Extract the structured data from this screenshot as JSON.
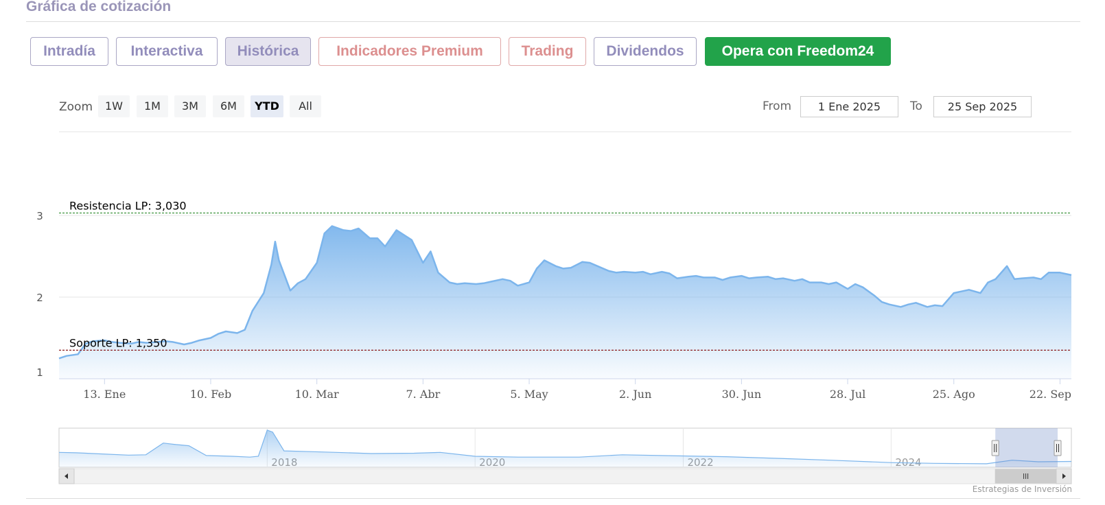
{
  "page_title": "Gráfica de cotización",
  "tabs": [
    {
      "label": "Intradía",
      "state": "normal"
    },
    {
      "label": "Interactiva",
      "state": "normal"
    },
    {
      "label": "Histórica",
      "state": "active"
    },
    {
      "label": "Indicadores Premium",
      "state": "premium"
    },
    {
      "label": "Trading",
      "state": "premium"
    },
    {
      "label": "Dividendos",
      "state": "normal"
    },
    {
      "label": "Opera con Freedom24",
      "state": "cta"
    }
  ],
  "zoom": {
    "label": "Zoom",
    "buttons": [
      "1W",
      "1M",
      "3M",
      "6M",
      "YTD",
      "All"
    ],
    "selected": "YTD"
  },
  "range": {
    "from_label": "From",
    "from_value": "1 Ene 2025",
    "to_label": "To",
    "to_value": "25 Sep 2025"
  },
  "credits": "Estrategias de Inversión",
  "colors": {
    "series_line": "#7cb5ec",
    "resistance": "#2e8b2e",
    "support": "#8b1a1a",
    "cta": "#22a34a"
  },
  "chart_data": {
    "type": "area",
    "title": "",
    "xlabel": "",
    "ylabel": "",
    "ylim": [
      1,
      3.2
    ],
    "y_ticks": [
      "1",
      "2",
      "3"
    ],
    "x_tick_labels": [
      "13. Ene",
      "10. Feb",
      "10. Mar",
      "7. Abr",
      "5. May",
      "2. Jun",
      "30. Jun",
      "28. Jul",
      "25. Ago",
      "22. Sep"
    ],
    "grid": "horizontal",
    "x_range": [
      "2025-01-01",
      "2025-09-25"
    ],
    "series": [
      {
        "values": [
          [
            "2025-01-01",
            1.25
          ],
          [
            "2025-01-03",
            1.28
          ],
          [
            "2025-01-06",
            1.3
          ],
          [
            "2025-01-08",
            1.43
          ],
          [
            "2025-01-10",
            1.46
          ],
          [
            "2025-01-13",
            1.47
          ],
          [
            "2025-01-15",
            1.45
          ],
          [
            "2025-01-17",
            1.44
          ],
          [
            "2025-01-20",
            1.43
          ],
          [
            "2025-01-22",
            1.45
          ],
          [
            "2025-01-24",
            1.44
          ],
          [
            "2025-01-27",
            1.45
          ],
          [
            "2025-01-29",
            1.46
          ],
          [
            "2025-01-31",
            1.45
          ],
          [
            "2025-02-03",
            1.42
          ],
          [
            "2025-02-05",
            1.44
          ],
          [
            "2025-02-07",
            1.47
          ],
          [
            "2025-02-10",
            1.5
          ],
          [
            "2025-02-12",
            1.55
          ],
          [
            "2025-02-14",
            1.58
          ],
          [
            "2025-02-17",
            1.56
          ],
          [
            "2025-02-19",
            1.6
          ],
          [
            "2025-02-21",
            1.83
          ],
          [
            "2025-02-24",
            2.05
          ],
          [
            "2025-02-26",
            2.4
          ],
          [
            "2025-02-27",
            2.68
          ],
          [
            "2025-02-28",
            2.45
          ],
          [
            "2025-03-03",
            2.08
          ],
          [
            "2025-03-05",
            2.17
          ],
          [
            "2025-03-07",
            2.22
          ],
          [
            "2025-03-10",
            2.42
          ],
          [
            "2025-03-12",
            2.78
          ],
          [
            "2025-03-14",
            2.87
          ],
          [
            "2025-03-17",
            2.82
          ],
          [
            "2025-03-19",
            2.81
          ],
          [
            "2025-03-21",
            2.84
          ],
          [
            "2025-03-24",
            2.72
          ],
          [
            "2025-03-26",
            2.72
          ],
          [
            "2025-03-28",
            2.62
          ],
          [
            "2025-03-31",
            2.82
          ],
          [
            "2025-04-02",
            2.76
          ],
          [
            "2025-04-04",
            2.7
          ],
          [
            "2025-04-07",
            2.42
          ],
          [
            "2025-04-09",
            2.56
          ],
          [
            "2025-04-11",
            2.3
          ],
          [
            "2025-04-14",
            2.18
          ],
          [
            "2025-04-16",
            2.16
          ],
          [
            "2025-04-18",
            2.17
          ],
          [
            "2025-04-21",
            2.16
          ],
          [
            "2025-04-23",
            2.17
          ],
          [
            "2025-04-25",
            2.19
          ],
          [
            "2025-04-28",
            2.22
          ],
          [
            "2025-04-30",
            2.2
          ],
          [
            "2025-05-02",
            2.14
          ],
          [
            "2025-05-05",
            2.18
          ],
          [
            "2025-05-07",
            2.35
          ],
          [
            "2025-05-09",
            2.45
          ],
          [
            "2025-05-12",
            2.38
          ],
          [
            "2025-05-14",
            2.35
          ],
          [
            "2025-05-16",
            2.36
          ],
          [
            "2025-05-19",
            2.43
          ],
          [
            "2025-05-21",
            2.42
          ],
          [
            "2025-05-23",
            2.38
          ],
          [
            "2025-05-26",
            2.32
          ],
          [
            "2025-05-28",
            2.3
          ],
          [
            "2025-05-30",
            2.31
          ],
          [
            "2025-06-02",
            2.3
          ],
          [
            "2025-06-04",
            2.31
          ],
          [
            "2025-06-06",
            2.28
          ],
          [
            "2025-06-09",
            2.31
          ],
          [
            "2025-06-11",
            2.29
          ],
          [
            "2025-06-13",
            2.23
          ],
          [
            "2025-06-16",
            2.25
          ],
          [
            "2025-06-18",
            2.26
          ],
          [
            "2025-06-20",
            2.24
          ],
          [
            "2025-06-23",
            2.24
          ],
          [
            "2025-06-25",
            2.21
          ],
          [
            "2025-06-27",
            2.24
          ],
          [
            "2025-06-30",
            2.26
          ],
          [
            "2025-07-02",
            2.23
          ],
          [
            "2025-07-04",
            2.24
          ],
          [
            "2025-07-07",
            2.25
          ],
          [
            "2025-07-09",
            2.22
          ],
          [
            "2025-07-11",
            2.23
          ],
          [
            "2025-07-14",
            2.2
          ],
          [
            "2025-07-16",
            2.22
          ],
          [
            "2025-07-18",
            2.18
          ],
          [
            "2025-07-21",
            2.18
          ],
          [
            "2025-07-23",
            2.16
          ],
          [
            "2025-07-25",
            2.18
          ],
          [
            "2025-07-28",
            2.1
          ],
          [
            "2025-07-30",
            2.16
          ],
          [
            "2025-08-01",
            2.12
          ],
          [
            "2025-08-04",
            2.02
          ],
          [
            "2025-08-06",
            1.94
          ],
          [
            "2025-08-08",
            1.91
          ],
          [
            "2025-08-11",
            1.88
          ],
          [
            "2025-08-13",
            1.91
          ],
          [
            "2025-08-15",
            1.93
          ],
          [
            "2025-08-18",
            1.88
          ],
          [
            "2025-08-20",
            1.9
          ],
          [
            "2025-08-22",
            1.89
          ],
          [
            "2025-08-25",
            2.05
          ],
          [
            "2025-08-27",
            2.07
          ],
          [
            "2025-08-29",
            2.09
          ],
          [
            "2025-09-01",
            2.05
          ],
          [
            "2025-09-03",
            2.18
          ],
          [
            "2025-09-05",
            2.22
          ],
          [
            "2025-09-08",
            2.38
          ],
          [
            "2025-09-10",
            2.22
          ],
          [
            "2025-09-12",
            2.23
          ],
          [
            "2025-09-15",
            2.24
          ],
          [
            "2025-09-17",
            2.22
          ],
          [
            "2025-09-19",
            2.3
          ],
          [
            "2025-09-22",
            2.3
          ],
          [
            "2025-09-25",
            2.27
          ]
        ]
      }
    ],
    "annotations": [
      {
        "label": "Resistencia LP: 3,030",
        "y": 3.03,
        "style": "dashed",
        "color": "#2e8b2e"
      },
      {
        "label": "Soporte LP: 1,350",
        "y": 1.35,
        "style": "dashed",
        "color": "#8b1a1a"
      }
    ],
    "navigator": {
      "tick_labels": [
        "2018",
        "2020",
        "2022",
        "2024"
      ],
      "selected_range": [
        "2025-01-01",
        "2025-09-25"
      ],
      "x_range": [
        "2016-01-01",
        "2025-09-25"
      ],
      "values": [
        [
          "2016-01-01",
          0.38
        ],
        [
          "2016-03-01",
          0.37
        ],
        [
          "2016-06-01",
          0.34
        ],
        [
          "2016-09-01",
          0.31
        ],
        [
          "2016-11-01",
          0.32
        ],
        [
          "2017-01-01",
          0.62
        ],
        [
          "2017-02-15",
          0.58
        ],
        [
          "2017-04-01",
          0.55
        ],
        [
          "2017-06-01",
          0.3
        ],
        [
          "2017-09-01",
          0.28
        ],
        [
          "2017-11-01",
          0.26
        ],
        [
          "2017-12-01",
          0.28
        ],
        [
          "2018-01-01",
          0.95
        ],
        [
          "2018-01-20",
          0.9
        ],
        [
          "2018-03-01",
          0.42
        ],
        [
          "2018-06-01",
          0.4
        ],
        [
          "2018-09-01",
          0.38
        ],
        [
          "2019-01-01",
          0.35
        ],
        [
          "2019-06-01",
          0.36
        ],
        [
          "2019-09-01",
          0.38
        ],
        [
          "2020-01-01",
          0.28
        ],
        [
          "2020-06-01",
          0.26
        ],
        [
          "2021-01-01",
          0.26
        ],
        [
          "2021-06-01",
          0.32
        ],
        [
          "2022-01-01",
          0.29
        ],
        [
          "2022-06-01",
          0.27
        ],
        [
          "2023-01-01",
          0.22
        ],
        [
          "2023-06-01",
          0.18
        ],
        [
          "2024-01-01",
          0.12
        ],
        [
          "2024-06-01",
          0.1
        ],
        [
          "2024-12-01",
          0.09
        ],
        [
          "2025-03-01",
          0.18
        ],
        [
          "2025-06-01",
          0.14
        ],
        [
          "2025-09-25",
          0.15
        ]
      ]
    }
  }
}
